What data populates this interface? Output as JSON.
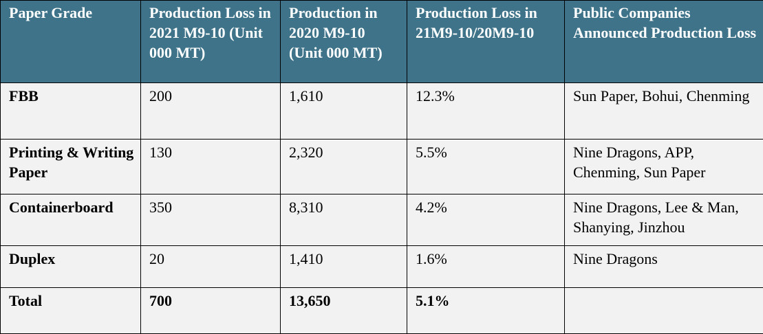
{
  "table": {
    "headers": [
      "Paper Grade",
      "Production Loss in 2021 M9-10 (Unit 000 MT)",
      "Production in 2020 M9-10 (Unit 000 MT)",
      "Production Loss in 21M9-10/20M9-10",
      "Public Companies Announced Production Loss"
    ],
    "rows": [
      {
        "grade": "FBB",
        "loss_2021": "200",
        "production_2020": "1,610",
        "loss_ratio": "12.3%",
        "companies": "Sun Paper, Bohui, Chenming"
      },
      {
        "grade": "Printing & Writing Paper",
        "loss_2021": "130",
        "production_2020": "2,320",
        "loss_ratio": "5.5%",
        "companies": "Nine Dragons, APP, Chenming, Sun Paper"
      },
      {
        "grade": "Containerboard",
        "loss_2021": "350",
        "production_2020": "8,310",
        "loss_ratio": "4.2%",
        "companies": "Nine Dragons, Lee & Man, Shanying, Jinzhou"
      },
      {
        "grade": "Duplex",
        "loss_2021": "20",
        "production_2020": "1,410",
        "loss_ratio": "1.6%",
        "companies": "Nine Dragons"
      },
      {
        "grade": "Total",
        "loss_2021": "700",
        "production_2020": "13,650",
        "loss_ratio": "5.1%",
        "companies": ""
      }
    ]
  },
  "colors": {
    "header_bg": "#3e7389",
    "header_text": "#ffffff",
    "cell_bg": "#f2f2f2",
    "border": "#000000"
  }
}
